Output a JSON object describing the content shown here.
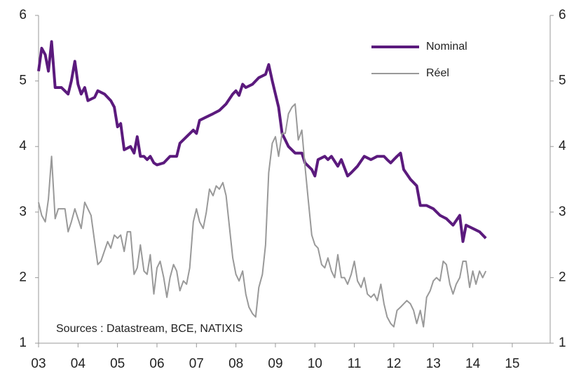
{
  "chart_data": {
    "type": "line",
    "annotation": "Sources : Datastream, BCE, NATIXIS",
    "xlim": [
      2003,
      2015.96
    ],
    "xticks": [
      {
        "value": 2003,
        "label": "03"
      },
      {
        "value": 2004,
        "label": "04"
      },
      {
        "value": 2005,
        "label": "05"
      },
      {
        "value": 2006,
        "label": "06"
      },
      {
        "value": 2007,
        "label": "07"
      },
      {
        "value": 2008,
        "label": "08"
      },
      {
        "value": 2009,
        "label": "09"
      },
      {
        "value": 2010,
        "label": "10"
      },
      {
        "value": 2011,
        "label": "11"
      },
      {
        "value": 2012,
        "label": "12"
      },
      {
        "value": 2013,
        "label": "13"
      },
      {
        "value": 2014,
        "label": "14"
      },
      {
        "value": 2015,
        "label": "15"
      }
    ],
    "ylim": [
      1,
      6
    ],
    "yticks": [
      1,
      2,
      3,
      4,
      5,
      6
    ],
    "y2lim": [
      1,
      6
    ],
    "y2ticks": [
      1,
      2,
      3,
      4,
      5,
      6
    ],
    "legend": "upper right",
    "series": [
      {
        "name": "Nominal",
        "color": "#5b1a7d",
        "width": 4,
        "x": [
          2003.0,
          2003.08,
          2003.17,
          2003.25,
          2003.33,
          2003.42,
          2003.58,
          2003.75,
          2003.83,
          2003.92,
          2004.0,
          2004.08,
          2004.17,
          2004.25,
          2004.42,
          2004.5,
          2004.67,
          2004.83,
          2004.92,
          2005.0,
          2005.08,
          2005.17,
          2005.33,
          2005.42,
          2005.5,
          2005.58,
          2005.67,
          2005.75,
          2005.83,
          2005.92,
          2006.0,
          2006.17,
          2006.33,
          2006.5,
          2006.58,
          2006.75,
          2006.92,
          2007.0,
          2007.08,
          2007.25,
          2007.42,
          2007.58,
          2007.75,
          2007.92,
          2008.0,
          2008.08,
          2008.17,
          2008.25,
          2008.42,
          2008.58,
          2008.75,
          2008.83,
          2008.92,
          2009.0,
          2009.08,
          2009.17,
          2009.25,
          2009.33,
          2009.5,
          2009.67,
          2009.75,
          2009.92,
          2010.0,
          2010.08,
          2010.25,
          2010.33,
          2010.42,
          2010.58,
          2010.67,
          2010.83,
          2010.92,
          2011.08,
          2011.25,
          2011.42,
          2011.58,
          2011.75,
          2011.83,
          2011.92,
          2012.0,
          2012.08,
          2012.17,
          2012.25,
          2012.42,
          2012.58,
          2012.67,
          2012.83,
          2013.0,
          2013.17,
          2013.33,
          2013.5,
          2013.67,
          2013.75,
          2013.83,
          2014.0,
          2014.17,
          2014.33
        ],
        "values": [
          5.15,
          5.5,
          5.4,
          5.15,
          5.6,
          4.9,
          4.9,
          4.8,
          5.0,
          5.3,
          4.95,
          4.8,
          4.9,
          4.7,
          4.75,
          4.85,
          4.8,
          4.7,
          4.6,
          4.3,
          4.35,
          3.95,
          4.0,
          3.9,
          4.15,
          3.85,
          3.85,
          3.8,
          3.85,
          3.75,
          3.72,
          3.75,
          3.85,
          3.85,
          4.05,
          4.15,
          4.25,
          4.2,
          4.4,
          4.45,
          4.5,
          4.55,
          4.65,
          4.8,
          4.85,
          4.78,
          4.95,
          4.9,
          4.95,
          5.05,
          5.1,
          5.25,
          5.0,
          4.8,
          4.6,
          4.2,
          4.1,
          4.0,
          3.9,
          3.9,
          3.75,
          3.65,
          3.55,
          3.8,
          3.85,
          3.8,
          3.85,
          3.7,
          3.8,
          3.55,
          3.6,
          3.7,
          3.85,
          3.8,
          3.85,
          3.85,
          3.8,
          3.75,
          3.8,
          3.85,
          3.9,
          3.65,
          3.5,
          3.4,
          3.1,
          3.1,
          3.05,
          2.95,
          2.9,
          2.8,
          2.95,
          2.55,
          2.8,
          2.75,
          2.7,
          2.6
        ]
      },
      {
        "name": "Réel",
        "color": "#999999",
        "width": 2,
        "x": [
          2003.0,
          2003.08,
          2003.17,
          2003.25,
          2003.33,
          2003.42,
          2003.5,
          2003.67,
          2003.75,
          2003.83,
          2003.92,
          2004.0,
          2004.08,
          2004.17,
          2004.33,
          2004.42,
          2004.5,
          2004.58,
          2004.75,
          2004.83,
          2004.92,
          2005.0,
          2005.08,
          2005.17,
          2005.25,
          2005.33,
          2005.42,
          2005.5,
          2005.58,
          2005.67,
          2005.75,
          2005.83,
          2005.92,
          2006.0,
          2006.08,
          2006.17,
          2006.25,
          2006.33,
          2006.42,
          2006.5,
          2006.58,
          2006.67,
          2006.75,
          2006.83,
          2006.92,
          2007.0,
          2007.08,
          2007.17,
          2007.25,
          2007.33,
          2007.42,
          2007.5,
          2007.58,
          2007.67,
          2007.75,
          2007.83,
          2007.92,
          2008.0,
          2008.08,
          2008.17,
          2008.25,
          2008.33,
          2008.42,
          2008.5,
          2008.58,
          2008.67,
          2008.75,
          2008.83,
          2008.92,
          2009.0,
          2009.08,
          2009.17,
          2009.25,
          2009.33,
          2009.42,
          2009.5,
          2009.58,
          2009.67,
          2009.75,
          2009.83,
          2009.92,
          2010.0,
          2010.08,
          2010.17,
          2010.25,
          2010.33,
          2010.42,
          2010.5,
          2010.58,
          2010.67,
          2010.75,
          2010.83,
          2010.92,
          2011.0,
          2011.08,
          2011.17,
          2011.25,
          2011.33,
          2011.42,
          2011.5,
          2011.58,
          2011.67,
          2011.75,
          2011.83,
          2011.92,
          2012.0,
          2012.08,
          2012.17,
          2012.25,
          2012.33,
          2012.42,
          2012.5,
          2012.58,
          2012.67,
          2012.75,
          2012.83,
          2012.92,
          2013.0,
          2013.08,
          2013.17,
          2013.25,
          2013.33,
          2013.42,
          2013.5,
          2013.58,
          2013.67,
          2013.75,
          2013.83,
          2013.92,
          2014.0,
          2014.08,
          2014.17,
          2014.25,
          2014.33
        ],
        "values": [
          3.15,
          2.95,
          2.85,
          3.2,
          3.85,
          2.9,
          3.05,
          3.05,
          2.7,
          2.85,
          3.05,
          2.9,
          2.75,
          3.15,
          2.95,
          2.55,
          2.2,
          2.25,
          2.55,
          2.45,
          2.65,
          2.6,
          2.65,
          2.4,
          2.7,
          2.7,
          2.05,
          2.15,
          2.5,
          2.1,
          2.05,
          2.35,
          1.75,
          2.15,
          2.25,
          2.0,
          1.7,
          2.0,
          2.2,
          2.1,
          1.8,
          1.95,
          1.9,
          2.15,
          2.85,
          3.05,
          2.85,
          2.75,
          3.0,
          3.35,
          3.25,
          3.4,
          3.35,
          3.45,
          3.25,
          2.8,
          2.3,
          2.05,
          1.95,
          2.1,
          1.75,
          1.55,
          1.45,
          1.4,
          1.85,
          2.05,
          2.5,
          3.6,
          4.05,
          4.15,
          3.85,
          4.2,
          4.2,
          4.5,
          4.6,
          4.65,
          4.1,
          4.25,
          3.7,
          3.2,
          2.65,
          2.5,
          2.45,
          2.2,
          2.15,
          2.3,
          2.1,
          2.0,
          2.35,
          2.0,
          2.0,
          1.9,
          2.05,
          2.25,
          1.95,
          1.85,
          2.0,
          1.75,
          1.7,
          1.75,
          1.65,
          1.9,
          1.6,
          1.4,
          1.3,
          1.25,
          1.5,
          1.55,
          1.6,
          1.65,
          1.6,
          1.5,
          1.3,
          1.5,
          1.25,
          1.7,
          1.8,
          1.95,
          2.0,
          1.95,
          2.25,
          2.2,
          1.9,
          1.75,
          1.9,
          2.0,
          2.25,
          2.25,
          1.85,
          2.1,
          1.9,
          2.1,
          2.0,
          2.1
        ]
      }
    ]
  }
}
